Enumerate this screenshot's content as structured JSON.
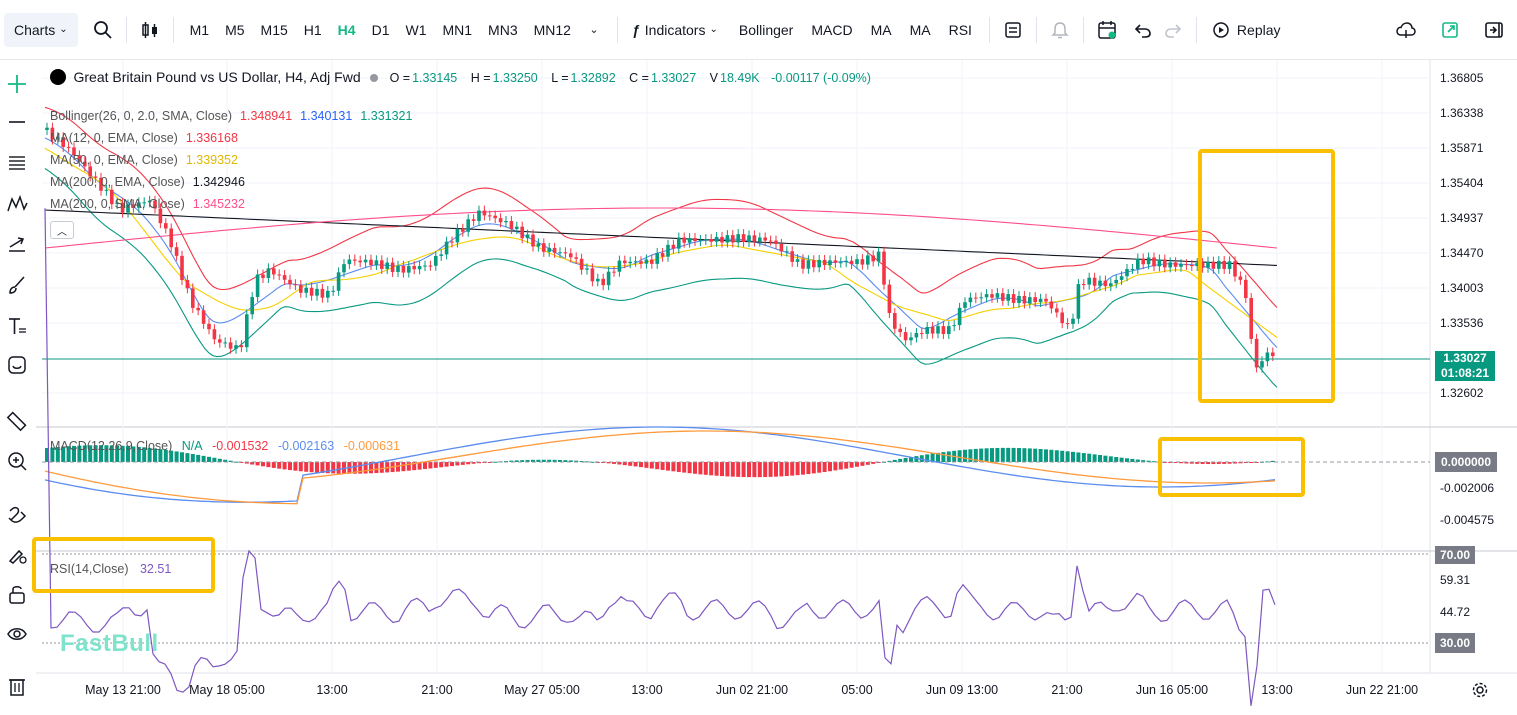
{
  "toolbar": {
    "charts_label": "Charts",
    "timeframes": [
      "M1",
      "M5",
      "M15",
      "H1",
      "H4",
      "D1",
      "W1",
      "MN1",
      "MN3",
      "MN12"
    ],
    "active_timeframe": "H4",
    "indicators_label": "Indicators",
    "quick_indicators": [
      "Bollinger",
      "MACD",
      "MA",
      "MA",
      "RSI"
    ],
    "replay_label": "Replay"
  },
  "legend": {
    "symbol": "Great Britain Pound vs US Dollar, H4, Adj Fwd",
    "open_label": "O =",
    "open": "1.33145",
    "high_label": "H =",
    "high": "1.33250",
    "low_label": "L =",
    "low": "1.32892",
    "close_label": "C =",
    "close": "1.33027",
    "volume_label": "V",
    "volume": "18.49K",
    "change": "-0.00117 (-0.09%)"
  },
  "indicators": [
    {
      "name": "Bollinger(26, 0, 2.0, SMA, Close)",
      "values": [
        "1.348941",
        "1.340131",
        "1.331321"
      ],
      "colors": [
        "#f23645",
        "#2962ff",
        "#089981"
      ]
    },
    {
      "name": "MA(12, 0, EMA, Close)",
      "values": [
        "1.336168"
      ],
      "colors": [
        "#f23645"
      ]
    },
    {
      "name": "MA(50, 0, EMA, Close)",
      "values": [
        "1.339352"
      ],
      "colors": [
        "#f5d000"
      ]
    },
    {
      "name": "MA(200, 0, EMA, Close)",
      "values": [
        "1.342946"
      ],
      "colors": [
        "#131722"
      ]
    },
    {
      "name": "MA(200, 0, SMA, Close)",
      "values": [
        "1.345232"
      ],
      "colors": [
        "#ff4f8b"
      ]
    }
  ],
  "price_axis": [
    "1.36805",
    "1.36338",
    "1.35871",
    "1.35404",
    "1.34937",
    "1.34470",
    "1.34003",
    "1.33536",
    "1.32602"
  ],
  "current_price": {
    "price": "1.33027",
    "countdown": "01:08:21"
  },
  "macd": {
    "name": "MACD(12,26,9,Close)",
    "values": [
      "N/A",
      "-0.001532",
      "-0.002163",
      "-0.000631"
    ],
    "axis": [
      "-0.002006",
      "-0.004575"
    ],
    "zero_label": "0.000000"
  },
  "rsi": {
    "name": "RSI(14,Close)",
    "value": "32.51",
    "axis": [
      "59.31",
      "44.72"
    ],
    "upper": "70.00",
    "lower": "30.00"
  },
  "time_axis": [
    "May 13 21:00",
    "May 18 05:00",
    "13:00",
    "21:00",
    "May 27 05:00",
    "13:00",
    "Jun 02 21:00",
    "05:00",
    "Jun 09 13:00",
    "21:00",
    "Jun 16 05:00",
    "13:00",
    "Jun 22 21:00"
  ],
  "watermark": "FastBull",
  "colors": {
    "up": "#089981",
    "down": "#f23645",
    "accent": "#13b985",
    "highlight": "#f9c000",
    "rsi_line": "#7e57c2",
    "macd_line": "#5b8def",
    "signal_line": "#ff9a3d"
  },
  "left_tools": [
    "crosshair-icon",
    "line-icon",
    "fib-icon",
    "pattern-icon",
    "projection-icon",
    "brush-icon",
    "text-icon",
    "emoji-icon",
    "ruler-icon",
    "zoom-icon",
    "magnet-icon",
    "lock-drawing-icon",
    "lock-icon",
    "eye-icon",
    "trash-icon"
  ]
}
